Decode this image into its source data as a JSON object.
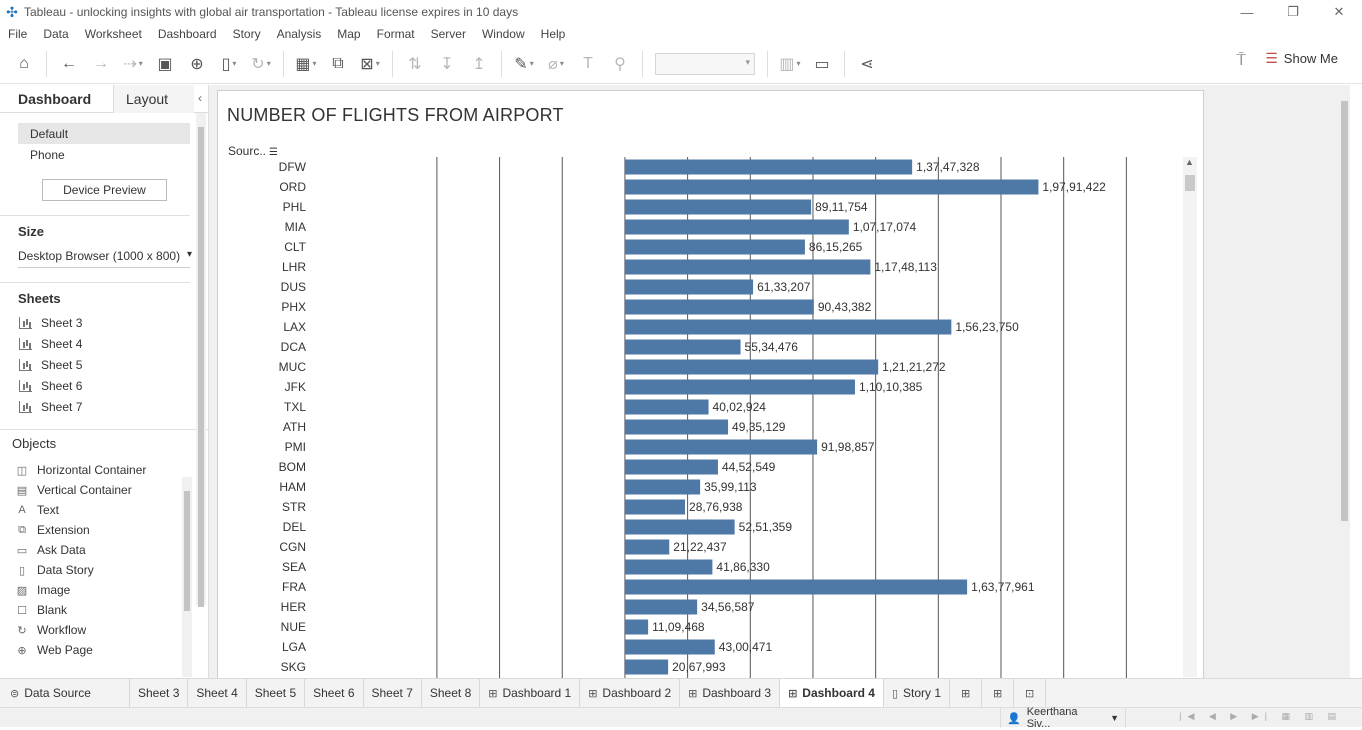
{
  "window": {
    "title": "Tableau - unlocking insights with global air transportation - Tableau license expires in 10 days",
    "minimize": "—",
    "restore": "❐",
    "close": "✕"
  },
  "menu": [
    "File",
    "Data",
    "Worksheet",
    "Dashboard",
    "Story",
    "Analysis",
    "Map",
    "Format",
    "Server",
    "Window",
    "Help"
  ],
  "toolbar": {
    "show_me": "Show Me"
  },
  "left_pane": {
    "tab_dashboard": "Dashboard",
    "tab_layout": "Layout",
    "device_default": "Default",
    "device_phone": "Phone",
    "device_preview": "Device Preview",
    "size_title": "Size",
    "size_value": "Desktop Browser (1000 x 800)",
    "sheets_title": "Sheets",
    "sheets": [
      "Sheet 3",
      "Sheet 4",
      "Sheet 5",
      "Sheet 6",
      "Sheet 7"
    ],
    "objects_title": "Objects",
    "objects": [
      {
        "label": "Horizontal Container",
        "icon": "horizontal-container-icon",
        "glyph": "◫"
      },
      {
        "label": "Vertical Container",
        "icon": "vertical-container-icon",
        "glyph": "▤"
      },
      {
        "label": "Text",
        "icon": "text-icon",
        "glyph": "A"
      },
      {
        "label": "Extension",
        "icon": "extension-icon",
        "glyph": "⧉"
      },
      {
        "label": "Ask Data",
        "icon": "ask-data-icon",
        "glyph": "▭"
      },
      {
        "label": "Data Story",
        "icon": "data-story-icon",
        "glyph": "▯"
      },
      {
        "label": "Image",
        "icon": "image-icon",
        "glyph": "▨"
      },
      {
        "label": "Blank",
        "icon": "blank-icon",
        "glyph": "☐"
      },
      {
        "label": "Workflow",
        "icon": "workflow-icon",
        "glyph": "↻"
      },
      {
        "label": "Web Page",
        "icon": "web-page-icon",
        "glyph": "⊕"
      }
    ]
  },
  "chart_data": {
    "type": "bar",
    "orientation": "horizontal",
    "title": "NUMBER OF FLIGHTS FROM AIRPORT",
    "ylabel": "Sourc..",
    "xlim": [
      -10000000,
      20800000
    ],
    "bar_color": "#4e79a7",
    "categories": [
      "DFW",
      "ORD",
      "PHL",
      "MIA",
      "CLT",
      "LHR",
      "DUS",
      "PHX",
      "LAX",
      "DCA",
      "MUC",
      "JFK",
      "TXL",
      "ATH",
      "PMI",
      "BOM",
      "HAM",
      "STR",
      "DEL",
      "CGN",
      "SEA",
      "FRA",
      "HER",
      "NUE",
      "LGA",
      "SKG"
    ],
    "values": [
      13747328,
      19791422,
      8911754,
      10717074,
      8615265,
      11748113,
      6133207,
      9043382,
      15623750,
      5534476,
      12121272,
      11010385,
      4002924,
      4935129,
      9198857,
      4452549,
      3599113,
      2876938,
      5251359,
      2122437,
      4186330,
      16377961,
      3456587,
      1109468,
      4300471,
      2067993
    ],
    "labels": [
      "1,37,47,328",
      "1,97,91,422",
      "89,11,754",
      "1,07,17,074",
      "86,15,265",
      "1,17,48,113",
      "61,33,207",
      "90,43,382",
      "1,56,23,750",
      "55,34,476",
      "1,21,21,272",
      "1,10,10,385",
      "40,02,924",
      "49,35,129",
      "91,98,857",
      "44,52,549",
      "35,99,113",
      "28,76,938",
      "52,51,359",
      "21,22,437",
      "41,86,330",
      "1,63,77,961",
      "34,56,587",
      "11,09,468",
      "43,00,471",
      "20,67,993"
    ]
  },
  "tabs": {
    "data_source": "Data Source",
    "sheets": [
      "Sheet 3",
      "Sheet 4",
      "Sheet 5",
      "Sheet 6",
      "Sheet 7",
      "Sheet 8"
    ],
    "dashboards": [
      "Dashboard 1",
      "Dashboard 2",
      "Dashboard 3",
      "Dashboard 4"
    ],
    "active": "Dashboard 4",
    "story": "Story 1"
  },
  "status": {
    "user": "Keerthana Siv..."
  }
}
